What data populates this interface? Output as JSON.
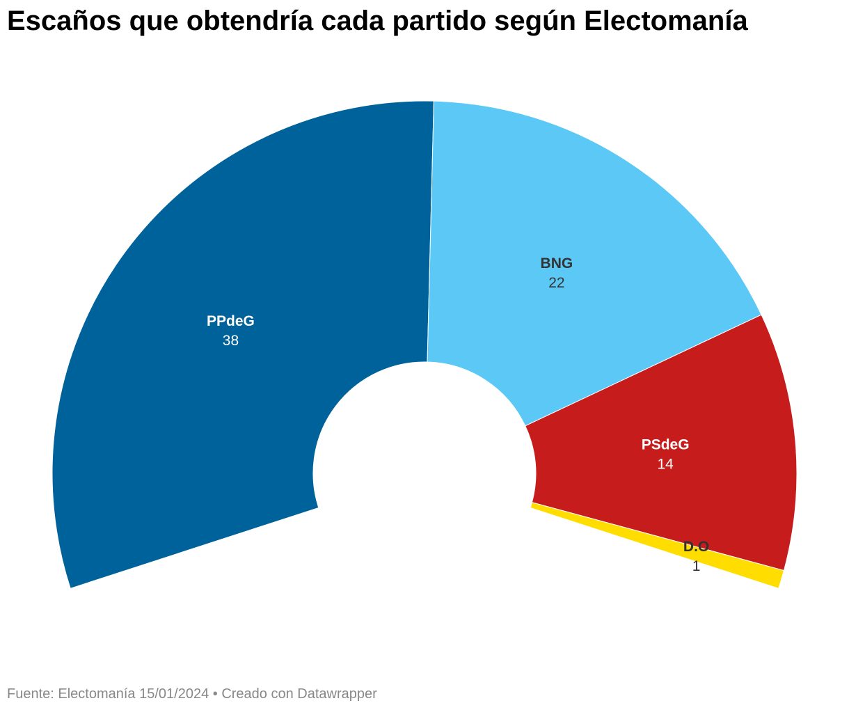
{
  "title": "Escaños que obtendría cada partido según Electomanía",
  "footer": "Fuente: Electomanía 15/01/2024 • Creado con Datawrapper",
  "chart_data": {
    "type": "pie",
    "variant": "semicircle-donut",
    "title": "Escaños que obtendría cada partido según Electomanía",
    "total": 75,
    "series": [
      {
        "name": "PPdeG",
        "value": 38,
        "color": "#00629b",
        "label_color": "#ffffff"
      },
      {
        "name": "BNG",
        "value": 22,
        "color": "#5bc8f6",
        "label_color": "#333333"
      },
      {
        "name": "PSdeG",
        "value": 14,
        "color": "#c71c1c",
        "label_color": "#ffffff"
      },
      {
        "name": "D.O",
        "value": 1,
        "color": "#ffdd00",
        "label_color": "#333333"
      }
    ]
  }
}
